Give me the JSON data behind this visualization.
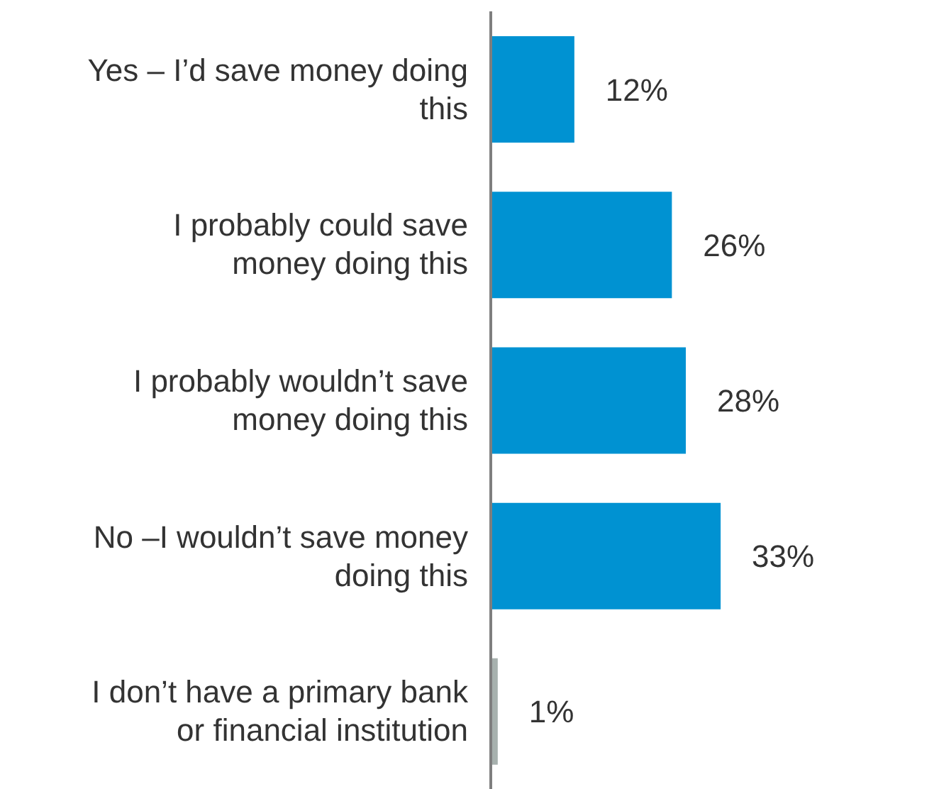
{
  "chart_data": {
    "type": "bar",
    "orientation": "horizontal",
    "categories": [
      "Yes – I’d save money doing this",
      "I probably could save money doing this",
      "I probably wouldn’t save money doing this",
      "No –I wouldn’t save money doing this",
      "I don’t have a primary bank or financial institution"
    ],
    "values": [
      12,
      26,
      28,
      33,
      1
    ],
    "colors": [
      "#0092d2",
      "#0092d2",
      "#0092d2",
      "#0092d2",
      "#a7b1ae"
    ],
    "value_labels": [
      "12%",
      "26%",
      "28%",
      "33%",
      "1%"
    ],
    "grid": false,
    "legend": false
  }
}
